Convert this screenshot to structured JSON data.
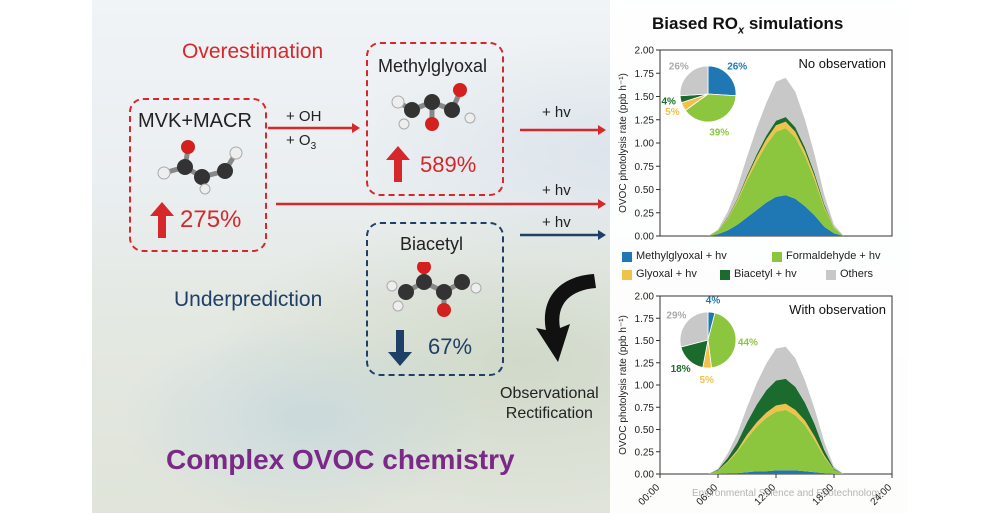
{
  "labels": {
    "overestimation": "Overestimation",
    "underprediction": "Underprediction",
    "mvk_macr": "MVK+MACR",
    "mvk_increase": "275%",
    "methylglyoxal": "Methylglyoxal",
    "methylglyoxal_increase": "589%",
    "biacetyl": "Biacetyl",
    "biacetyl_decrease": "67%",
    "oxidant_oh": "+ OH",
    "oxidant_o3_base": "+ O",
    "oxidant_o3_sub": "3",
    "hv_top": "+ hv",
    "hv_mid": "+ hv",
    "hv_low": "+ hv",
    "rectification_line1": "Observational",
    "rectification_line2": "Rectification",
    "main_title": "Complex OVOC chemistry",
    "chart_panel_title_base": "Biased RO",
    "chart_panel_title_sub": "x",
    "chart_panel_title_rest": " simulations",
    "watermark": "Environmental Science and Ecotechnology"
  },
  "colors": {
    "red": "#d6282b",
    "blue": "#1f3f66",
    "purple": "#7a2a86",
    "methylglyoxal": "#1f78b4",
    "formaldehyde": "#8cc63f",
    "glyoxal": "#f0c24a",
    "biacetyl": "#1b6b2e",
    "others": "#c8c8c8"
  },
  "legend": [
    {
      "label": "Methylglyoxal + hv",
      "color": "#1f78b4"
    },
    {
      "label": "Formaldehyde + hv",
      "color": "#8cc63f"
    },
    {
      "label": "Glyoxal + hv",
      "color": "#f0c24a"
    },
    {
      "label": "Biacetyl + hv",
      "color": "#1b6b2e"
    },
    {
      "label": "Others",
      "color": "#c8c8c8"
    }
  ],
  "chart_data": [
    {
      "type": "area",
      "title": "No observation",
      "ylabel": "OVOC photolysis rate (ppb h⁻¹)",
      "ylim": [
        0,
        2.0
      ],
      "yticks": [
        "0.00",
        "0.25",
        "0.50",
        "0.75",
        "1.00",
        "1.25",
        "1.50",
        "1.75",
        "2.00"
      ],
      "x": [
        5,
        6,
        7,
        8,
        9,
        10,
        11,
        12,
        13,
        14,
        15,
        16,
        17,
        18,
        19
      ],
      "series": [
        {
          "name": "Methylglyoxal + hv",
          "values": [
            0,
            0.02,
            0.06,
            0.12,
            0.2,
            0.28,
            0.36,
            0.42,
            0.44,
            0.4,
            0.32,
            0.22,
            0.1,
            0.03,
            0
          ]
        },
        {
          "name": "Formaldehyde + hv",
          "values": [
            0,
            0.04,
            0.12,
            0.25,
            0.4,
            0.52,
            0.62,
            0.7,
            0.72,
            0.66,
            0.54,
            0.38,
            0.2,
            0.06,
            0
          ]
        },
        {
          "name": "Glyoxal + hv",
          "values": [
            0,
            0.0,
            0.01,
            0.02,
            0.03,
            0.05,
            0.06,
            0.07,
            0.07,
            0.06,
            0.05,
            0.04,
            0.02,
            0.0,
            0
          ]
        },
        {
          "name": "Biacetyl + hv",
          "values": [
            0,
            0.0,
            0.01,
            0.01,
            0.02,
            0.03,
            0.04,
            0.05,
            0.05,
            0.05,
            0.04,
            0.03,
            0.02,
            0.0,
            0
          ]
        },
        {
          "name": "Others",
          "values": [
            0,
            0.01,
            0.06,
            0.12,
            0.2,
            0.28,
            0.35,
            0.42,
            0.42,
            0.38,
            0.3,
            0.2,
            0.1,
            0.03,
            0
          ]
        }
      ],
      "pie": {
        "values": [
          26,
          39,
          5,
          4,
          26
        ],
        "labels": [
          "26%",
          "39%",
          "5%",
          "4%",
          "26%"
        ]
      }
    },
    {
      "type": "area",
      "title": "With observation",
      "ylabel": "OVOC photolysis rate (ppb h⁻¹)",
      "ylim": [
        0,
        2.0
      ],
      "yticks": [
        "0.00",
        "0.25",
        "0.50",
        "0.75",
        "1.00",
        "1.25",
        "1.50",
        "1.75",
        "2.00"
      ],
      "xticks": [
        "00:00",
        "06:00",
        "12:00",
        "18:00",
        "24:00"
      ],
      "x": [
        5,
        6,
        7,
        8,
        9,
        10,
        11,
        12,
        13,
        14,
        15,
        16,
        17,
        18,
        19
      ],
      "series": [
        {
          "name": "Methylglyoxal + hv",
          "values": [
            0,
            0.0,
            0.01,
            0.01,
            0.02,
            0.03,
            0.03,
            0.04,
            0.04,
            0.04,
            0.03,
            0.02,
            0.01,
            0.0,
            0
          ]
        },
        {
          "name": "Formaldehyde + hv",
          "values": [
            0,
            0.04,
            0.12,
            0.24,
            0.38,
            0.5,
            0.6,
            0.66,
            0.68,
            0.62,
            0.52,
            0.36,
            0.18,
            0.05,
            0
          ]
        },
        {
          "name": "Glyoxal + hv",
          "values": [
            0,
            0.0,
            0.01,
            0.02,
            0.04,
            0.05,
            0.06,
            0.07,
            0.07,
            0.06,
            0.05,
            0.04,
            0.02,
            0.0,
            0
          ]
        },
        {
          "name": "Biacetyl + hv",
          "values": [
            0,
            0.01,
            0.04,
            0.08,
            0.14,
            0.2,
            0.25,
            0.28,
            0.28,
            0.26,
            0.2,
            0.14,
            0.06,
            0.01,
            0
          ]
        },
        {
          "name": "Others",
          "values": [
            0,
            0.01,
            0.05,
            0.1,
            0.17,
            0.24,
            0.3,
            0.36,
            0.36,
            0.32,
            0.25,
            0.17,
            0.09,
            0.02,
            0
          ]
        }
      ],
      "pie": {
        "values": [
          4,
          44,
          5,
          18,
          29
        ],
        "labels": [
          "4%",
          "44%",
          "5%",
          "18%",
          "29%"
        ]
      }
    }
  ]
}
